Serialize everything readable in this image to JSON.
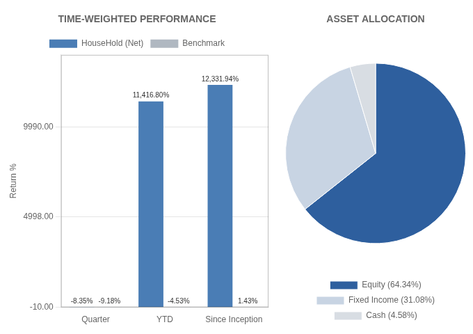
{
  "chart_data": [
    {
      "type": "bar",
      "title": "TIME-WEIGHTED PERFORMANCE",
      "ylabel": "Return %",
      "categories": [
        "Quarter",
        "YTD",
        "Since Inception"
      ],
      "series": [
        {
          "name": "HouseHold (Net)",
          "color": "#4a7db5",
          "values": [
            -8.35,
            11416.8,
            12331.94
          ],
          "value_labels": [
            "-8.35%",
            "11,416.80%",
            "12,331.94%"
          ]
        },
        {
          "name": "Benchmark",
          "color": "#b0b8c1",
          "values": [
            -9.18,
            -4.53,
            1.43
          ],
          "value_labels": [
            "-9.18%",
            "-4.53%",
            "1.43%"
          ]
        }
      ],
      "ylim": [
        -10,
        14000
      ],
      "yticks": [
        {
          "value": -10,
          "label": "-10.00"
        },
        {
          "value": 4998,
          "label": "4998.00"
        },
        {
          "value": 9990,
          "label": "9990.00"
        }
      ],
      "grid": true,
      "data_labels": true,
      "legend": "top"
    },
    {
      "type": "pie",
      "title": "ASSET ALLOCATION",
      "categories": [
        "Equity (64.34%)",
        "Fixed Income (31.08%)",
        "Cash (4.58%)"
      ],
      "values": [
        64.34,
        31.08,
        4.58
      ],
      "colors": [
        "#2e5f9e",
        "#c8d4e3",
        "#d8dde3"
      ],
      "legend": "bottom"
    }
  ]
}
